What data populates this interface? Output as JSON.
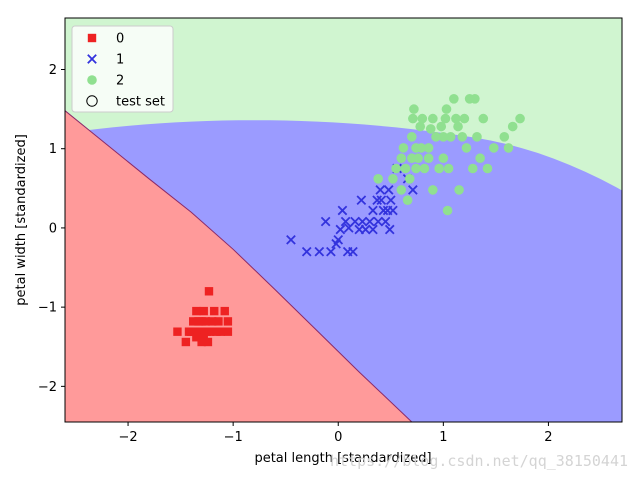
{
  "chart_data": {
    "type": "scatter",
    "title": "",
    "xlabel": "petal length [standardized]",
    "ylabel": "petal width [standardized]",
    "xlim": [
      -2.6,
      2.7
    ],
    "ylim": [
      -2.45,
      2.65
    ],
    "xticks": [
      -2,
      -1,
      0,
      1,
      2
    ],
    "yticks": [
      -2,
      -1,
      0,
      1,
      2
    ],
    "xtick_labels": [
      "−2",
      "−1",
      "0",
      "1",
      "2"
    ],
    "ytick_labels": [
      "−2",
      "−1",
      "0",
      "1",
      "2"
    ],
    "grid": false,
    "legend_position": "top-left",
    "regions": [
      {
        "class": "0",
        "color": "#ff9a9a"
      },
      {
        "class": "1",
        "color": "#9b9bff"
      },
      {
        "class": "2",
        "color": "#d0f5d0"
      }
    ],
    "series": [
      {
        "name": "0",
        "marker": "square",
        "color": "#ee2222",
        "points": [
          [
            -1.53,
            -1.31
          ],
          [
            -1.45,
            -1.44
          ],
          [
            -1.4,
            -1.31
          ],
          [
            -1.38,
            -1.18
          ],
          [
            -1.37,
            -1.31
          ],
          [
            -1.35,
            -1.05
          ],
          [
            -1.33,
            -1.18
          ],
          [
            -1.31,
            -1.31
          ],
          [
            -1.3,
            -1.44
          ],
          [
            -1.28,
            -1.05
          ],
          [
            -1.26,
            -1.18
          ],
          [
            -1.25,
            -1.31
          ],
          [
            -1.24,
            -1.44
          ],
          [
            -1.23,
            -0.8
          ],
          [
            -1.22,
            -1.31
          ],
          [
            -1.2,
            -1.18
          ],
          [
            -1.18,
            -1.05
          ],
          [
            -1.16,
            -1.31
          ],
          [
            -1.14,
            -1.18
          ],
          [
            -1.12,
            -1.31
          ],
          [
            -1.28,
            -1.38
          ],
          [
            -1.35,
            -1.38
          ],
          [
            -1.08,
            -1.05
          ],
          [
            -1.05,
            -1.18
          ],
          [
            -1.05,
            -1.31
          ],
          [
            -1.42,
            -1.31
          ],
          [
            -1.3,
            -1.18
          ]
        ]
      },
      {
        "name": "1",
        "marker": "x",
        "color": "#3333dd",
        "points": [
          [
            -0.45,
            -0.15
          ],
          [
            -0.3,
            -0.3
          ],
          [
            -0.18,
            -0.3
          ],
          [
            -0.12,
            0.08
          ],
          [
            -0.07,
            -0.3
          ],
          [
            -0.02,
            -0.2
          ],
          [
            0.0,
            -0.15
          ],
          [
            0.02,
            -0.02
          ],
          [
            0.04,
            0.22
          ],
          [
            0.07,
            0.08
          ],
          [
            0.09,
            -0.3
          ],
          [
            0.1,
            0.0
          ],
          [
            0.14,
            -0.3
          ],
          [
            0.16,
            0.08
          ],
          [
            0.2,
            -0.02
          ],
          [
            0.22,
            0.35
          ],
          [
            0.23,
            0.08
          ],
          [
            0.26,
            -0.02
          ],
          [
            0.3,
            0.08
          ],
          [
            0.33,
            0.22
          ],
          [
            0.33,
            -0.02
          ],
          [
            0.37,
            0.35
          ],
          [
            0.38,
            0.08
          ],
          [
            0.4,
            0.48
          ],
          [
            0.41,
            0.35
          ],
          [
            0.43,
            0.22
          ],
          [
            0.45,
            0.08
          ],
          [
            0.47,
            0.22
          ],
          [
            0.48,
            0.48
          ],
          [
            0.49,
            -0.02
          ],
          [
            0.5,
            0.35
          ],
          [
            0.52,
            0.22
          ],
          [
            0.56,
            0.75
          ],
          [
            0.66,
            0.62
          ],
          [
            0.71,
            0.48
          ]
        ]
      },
      {
        "name": "2",
        "marker": "circle",
        "color": "#90e090",
        "points": [
          [
            0.38,
            0.62
          ],
          [
            0.52,
            0.62
          ],
          [
            0.55,
            0.75
          ],
          [
            0.6,
            0.48
          ],
          [
            0.6,
            0.88
          ],
          [
            0.62,
            1.01
          ],
          [
            0.64,
            0.75
          ],
          [
            0.66,
            0.35
          ],
          [
            0.68,
            0.62
          ],
          [
            0.7,
            0.88
          ],
          [
            0.7,
            1.15
          ],
          [
            0.71,
            1.38
          ],
          [
            0.72,
            1.5
          ],
          [
            0.74,
            1.01
          ],
          [
            0.74,
            0.75
          ],
          [
            0.76,
            0.88
          ],
          [
            0.78,
            1.28
          ],
          [
            0.79,
            1.01
          ],
          [
            0.8,
            1.38
          ],
          [
            0.82,
            0.75
          ],
          [
            0.86,
            0.88
          ],
          [
            0.86,
            1.01
          ],
          [
            0.88,
            1.25
          ],
          [
            0.9,
            1.38
          ],
          [
            0.9,
            0.48
          ],
          [
            0.93,
            1.15
          ],
          [
            0.96,
            0.75
          ],
          [
            0.98,
            1.28
          ],
          [
            1.0,
            0.88
          ],
          [
            1.0,
            1.15
          ],
          [
            1.02,
            1.38
          ],
          [
            1.03,
            1.5
          ],
          [
            1.04,
            0.22
          ],
          [
            1.05,
            0.75
          ],
          [
            1.07,
            1.15
          ],
          [
            1.1,
            1.63
          ],
          [
            1.12,
            1.38
          ],
          [
            1.14,
            1.28
          ],
          [
            1.15,
            0.48
          ],
          [
            1.18,
            1.15
          ],
          [
            1.2,
            1.38
          ],
          [
            1.22,
            1.01
          ],
          [
            1.25,
            1.63
          ],
          [
            1.28,
            0.75
          ],
          [
            1.3,
            1.63
          ],
          [
            1.32,
            1.15
          ],
          [
            1.35,
            0.88
          ],
          [
            1.38,
            1.38
          ],
          [
            1.42,
            0.75
          ],
          [
            1.48,
            1.01
          ],
          [
            1.58,
            1.15
          ],
          [
            1.62,
            1.01
          ],
          [
            1.66,
            1.28
          ],
          [
            1.73,
            1.38
          ]
        ]
      },
      {
        "name": "test set",
        "marker": "circle-open",
        "color": "#000000",
        "points": []
      }
    ]
  },
  "watermark": "https://blog.csdn.net/qq_38150441"
}
